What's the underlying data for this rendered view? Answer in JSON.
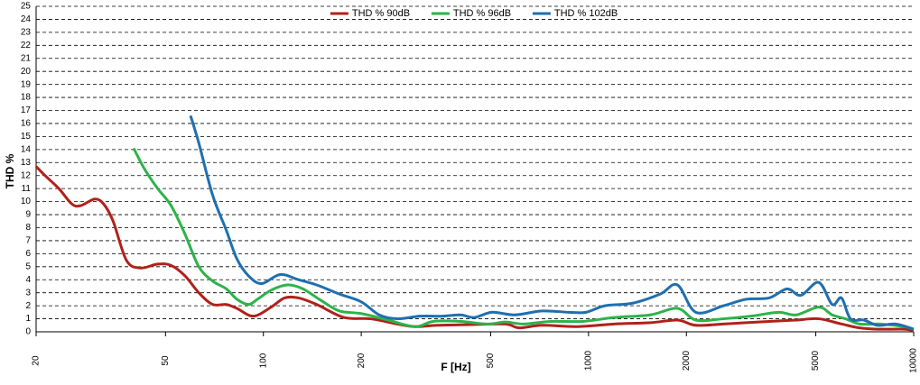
{
  "chart_data": {
    "type": "line",
    "x_label": "F [Hz]",
    "y_label": "THD %",
    "xscale": "log",
    "xlim": [
      20,
      10000
    ],
    "xticks": [
      20,
      50,
      100,
      200,
      500,
      1000,
      2000,
      5000,
      10000
    ],
    "ylim": [
      0,
      25
    ],
    "yticks": [
      0,
      1,
      2,
      3,
      4,
      5,
      6,
      7,
      8,
      9,
      10,
      11,
      12,
      13,
      14,
      15,
      16,
      17,
      18,
      19,
      20,
      21,
      22,
      23,
      24,
      25
    ],
    "grid": true,
    "legend": "top",
    "series": [
      {
        "name": "THD % 90dB",
        "color": "#b0211b",
        "x": [
          20,
          21.3,
          23.5,
          25.8,
          27.5,
          30.3,
          32.3,
          34.5,
          37.9,
          41.8,
          47.3,
          52,
          57.4,
          63.3,
          69.8,
          76.9,
          82.9,
          93.1,
          105.7,
          116.2,
          128.2,
          145.8,
          176.9,
          213.6,
          258,
          293,
          343,
          432,
          555,
          611,
          719,
          928,
          1199,
          1549,
          1877,
          2137,
          2599,
          3593,
          4353,
          5105,
          5997,
          6815,
          7744,
          9360,
          10000
        ],
        "values": [
          12.7,
          12,
          11,
          9.8,
          9.7,
          10.2,
          9.8,
          8.5,
          5.5,
          4.9,
          5.2,
          5.1,
          4.3,
          3,
          2.1,
          2.1,
          1.8,
          1.2,
          1.9,
          2.6,
          2.6,
          2.1,
          1.1,
          1,
          0.6,
          0.4,
          0.5,
          0.55,
          0.6,
          0.3,
          0.5,
          0.4,
          0.6,
          0.7,
          0.9,
          0.5,
          0.6,
          0.8,
          0.9,
          1,
          0.6,
          0.3,
          0.2,
          0.2,
          0.1
        ]
      },
      {
        "name": "THD % 96dB",
        "color": "#2db34a",
        "x": [
          39.9,
          43.1,
          47.3,
          52,
          57.4,
          63.3,
          69.8,
          76.9,
          82.9,
          90,
          95.9,
          105.7,
          118.5,
          132.3,
          150.6,
          171.4,
          200,
          242,
          293,
          333,
          404,
          488,
          555,
          632,
          764,
          958,
          1199,
          1549,
          1877,
          2137,
          2599,
          3157,
          3836,
          4353,
          5105,
          5616,
          6171,
          6815,
          7888,
          9360,
          10000
        ],
        "values": [
          14.1,
          12.5,
          11,
          9.7,
          7.5,
          5,
          3.9,
          3.3,
          2.5,
          2.1,
          2.5,
          3.2,
          3.6,
          3.3,
          2.4,
          1.6,
          1.4,
          0.9,
          0.4,
          0.8,
          0.8,
          0.6,
          0.75,
          0.6,
          0.8,
          0.8,
          1.1,
          1.3,
          1.8,
          0.9,
          1,
          1.2,
          1.5,
          1.3,
          1.9,
          1.3,
          1,
          0.6,
          0.6,
          0.4,
          0.2
        ]
      },
      {
        "name": "THD % 102dB",
        "color": "#1f6fb0",
        "x": [
          59.7,
          63.3,
          69.8,
          76.9,
          82.9,
          90,
          98.8,
          112.5,
          128.2,
          145.8,
          171.4,
          200,
          227,
          258,
          303,
          355,
          404,
          446,
          504,
          593,
          719,
          871,
          982,
          1123,
          1367,
          1662,
          1877,
          2137,
          2599,
          3054,
          3593,
          4080,
          4496,
          5105,
          5616,
          5997,
          6392,
          7036,
          7744,
          8811,
          10000
        ],
        "values": [
          16.6,
          14.5,
          10.5,
          7.8,
          5.6,
          4.3,
          3.7,
          4.4,
          4,
          3.6,
          2.9,
          2.3,
          1.3,
          1,
          1.2,
          1.2,
          1.3,
          1.1,
          1.5,
          1.3,
          1.6,
          1.5,
          1.5,
          2,
          2.2,
          2.9,
          3.6,
          1.5,
          2,
          2.5,
          2.6,
          3.3,
          2.8,
          3.8,
          2.1,
          2.6,
          1,
          0.9,
          0.5,
          0.6,
          0.2
        ]
      }
    ]
  }
}
